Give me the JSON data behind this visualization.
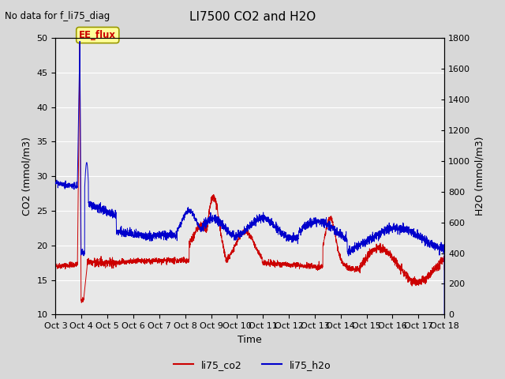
{
  "title": "LI7500 CO2 and H2O",
  "subtitle": "No data for f_li75_diag",
  "xlabel": "Time",
  "ylabel_left": "CO2 (mmol/m3)",
  "ylabel_right": "H2O (mmol/m3)",
  "ylim_left": [
    10,
    50
  ],
  "ylim_right": [
    0,
    1800
  ],
  "yticks_left": [
    10,
    15,
    20,
    25,
    30,
    35,
    40,
    45,
    50
  ],
  "yticks_right": [
    0,
    200,
    400,
    600,
    800,
    1000,
    1200,
    1400,
    1600,
    1800
  ],
  "xtick_labels": [
    "Oct 3",
    "Oct 4",
    "Oct 5",
    "Oct 6",
    "Oct 7",
    "Oct 8",
    "Oct 9",
    "Oct 10",
    "Oct 11",
    "Oct 12",
    "Oct 13",
    "Oct 14",
    "Oct 15",
    "Oct 16",
    "Oct 17",
    "Oct 18"
  ],
  "co2_color": "#cc0000",
  "h2o_color": "#0000cc",
  "fig_facecolor": "#d8d8d8",
  "plot_facecolor": "#e8e8e8",
  "grid_color": "#ffffff",
  "annotation_text": "EE_flux",
  "annotation_color": "#cc0000",
  "annotation_box_color": "#cccc00",
  "legend_entries": [
    "li75_co2",
    "li75_h2o"
  ],
  "legend_colors": [
    "#cc0000",
    "#0000cc"
  ]
}
